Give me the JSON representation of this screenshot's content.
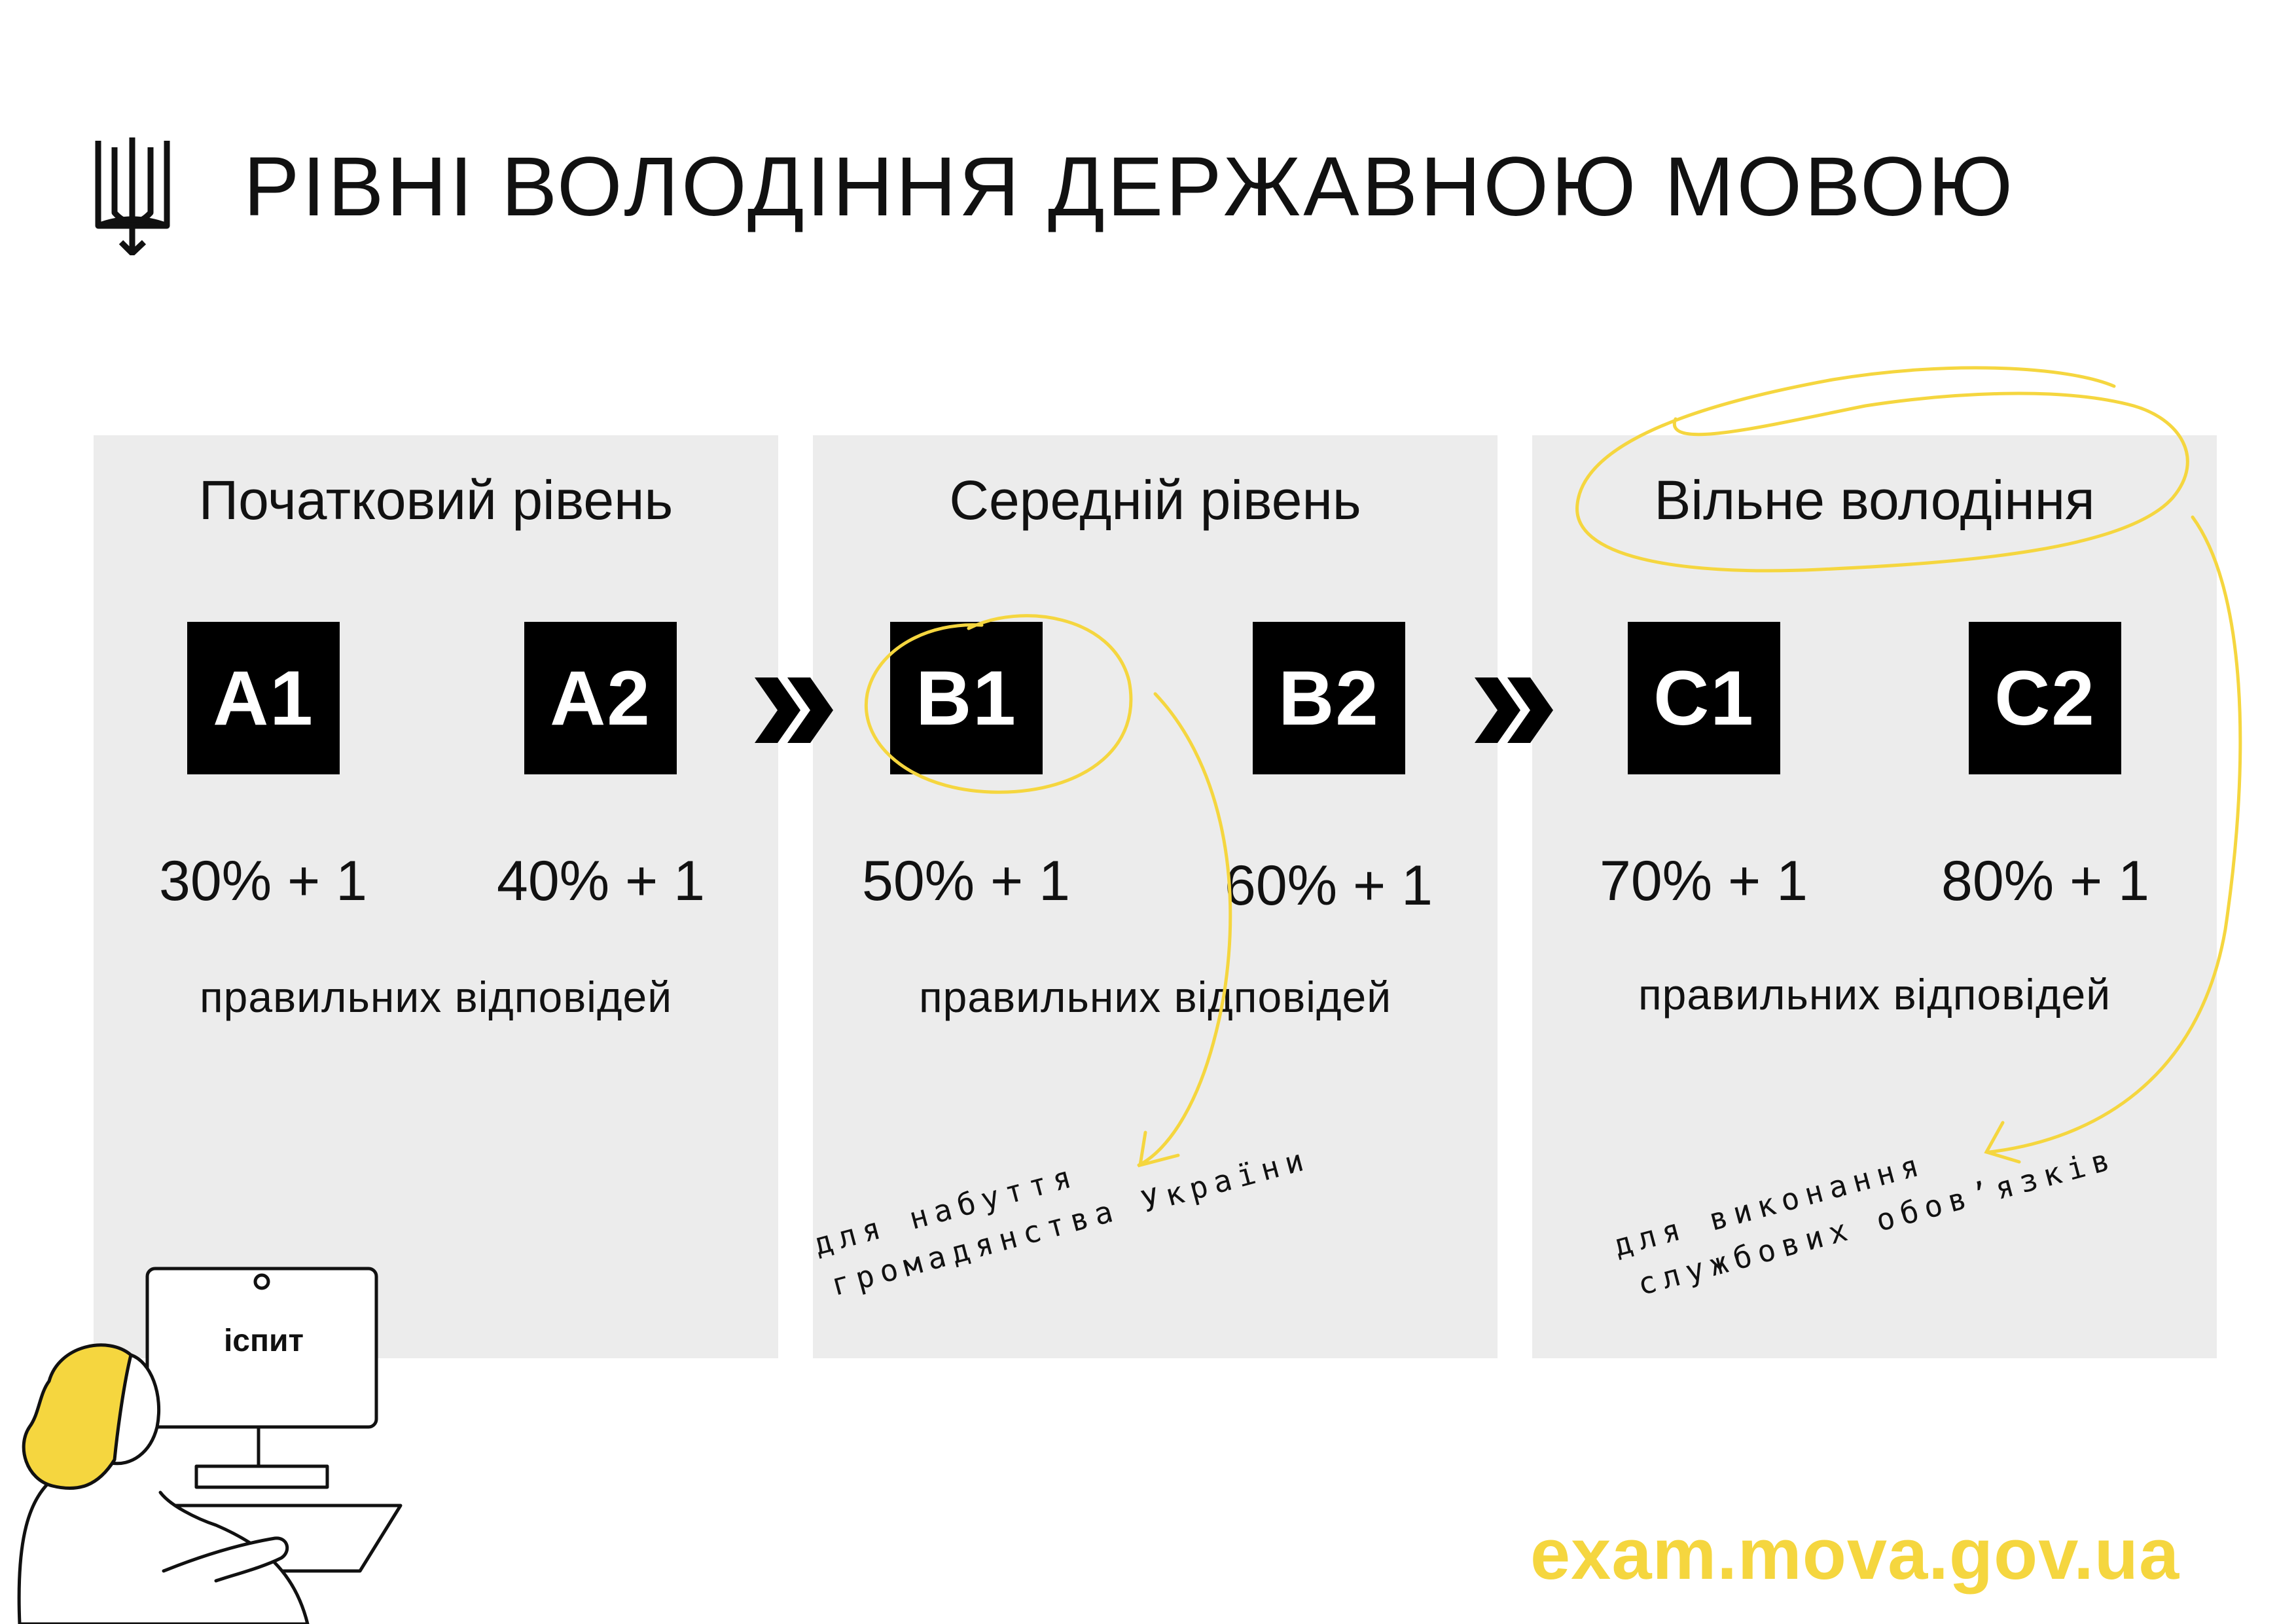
{
  "header": {
    "title": "РІВНІ ВОЛОДІННЯ ДЕРЖАВНОЮ МОВОЮ",
    "emblem_icon": "trident-icon"
  },
  "panels": [
    {
      "title": "Початковий рівень",
      "levels": [
        {
          "code": "A1",
          "score": "30% + 1"
        },
        {
          "code": "A2",
          "score": "40% + 1"
        }
      ],
      "caption": "правильних відповідей"
    },
    {
      "title": "Середній рівень",
      "levels": [
        {
          "code": "B1",
          "score": "50% + 1"
        },
        {
          "code": "B2",
          "score": "60% + 1"
        }
      ],
      "caption": "правильних відповідей"
    },
    {
      "title": "Вільне володіння",
      "levels": [
        {
          "code": "C1",
          "score": "70% + 1"
        },
        {
          "code": "C2",
          "score": "80% + 1"
        }
      ],
      "caption": "правильних відповідей"
    }
  ],
  "notes": {
    "citizenship_line1": "для набуття",
    "citizenship_line2": "громадянства України",
    "duties_line1": "для виконання",
    "duties_line2": "службових обов’язків"
  },
  "illustration": {
    "screen_label": "іспит"
  },
  "footer": {
    "url": "exam.mova.gov.ua"
  },
  "colors": {
    "accent": "#f5d63f",
    "panel": "#ececec",
    "badge": "#000000",
    "text": "#111111"
  }
}
